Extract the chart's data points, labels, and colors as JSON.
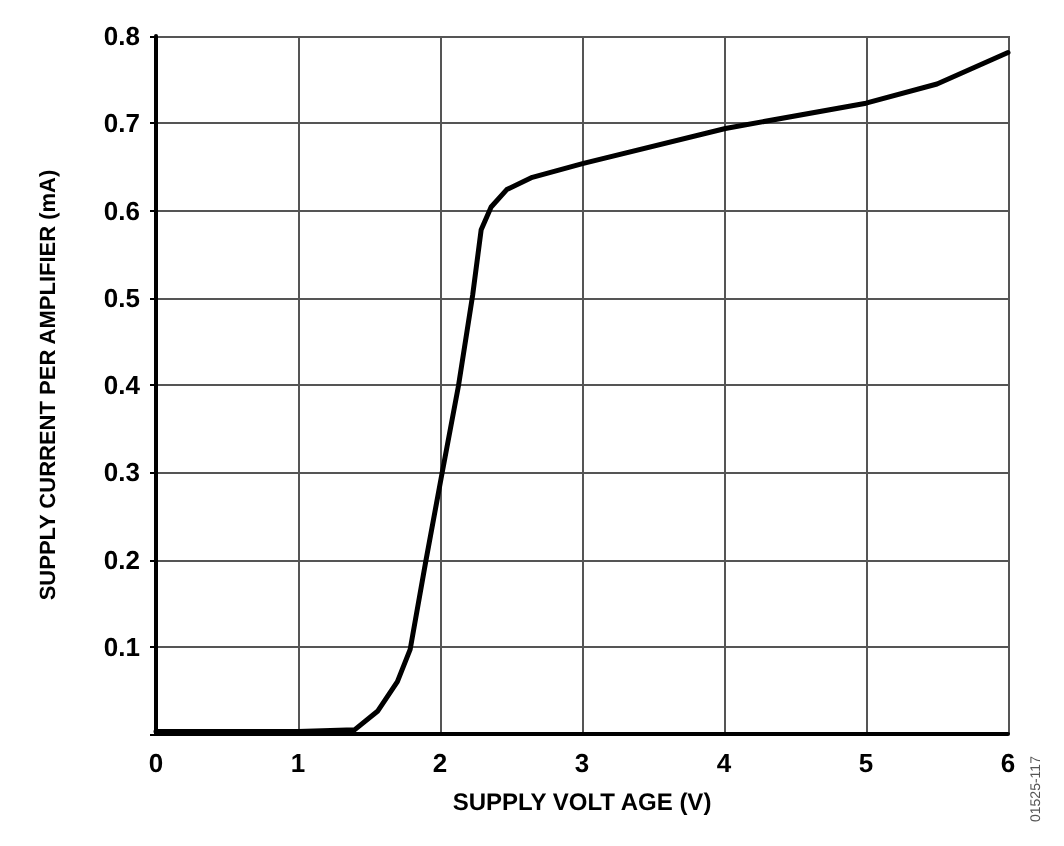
{
  "chart_data": {
    "type": "line",
    "xlabel": "SUPPLY VOLT AGE (V)",
    "ylabel": "SUPPLY CURRENT PER AMPLIFIER (mA)",
    "annotations": [
      "01525-117"
    ],
    "x": [
      0,
      1.0,
      1.4,
      1.56,
      1.7,
      1.79,
      1.9,
      2.01,
      2.13,
      2.23,
      2.29,
      2.36,
      2.47,
      2.65,
      3.01,
      4.01,
      5.0,
      5.5,
      6.0
    ],
    "series": [
      {
        "color": "#000000",
        "values": [
          0.003,
          0.003,
          0.005,
          0.026,
          0.06,
          0.097,
          0.198,
          0.295,
          0.399,
          0.503,
          0.578,
          0.604,
          0.624,
          0.638,
          0.654,
          0.694,
          0.723,
          0.745,
          0.781
        ]
      }
    ],
    "xlim": [
      0,
      6
    ],
    "xticks": [
      0,
      1,
      2,
      3,
      4,
      5,
      6
    ],
    "ylim": [
      0,
      0.8
    ],
    "yticks": [
      {
        "value": 0,
        "label": null
      },
      0.1,
      0.2,
      0.3,
      0.4,
      0.5,
      0.6,
      0.7,
      0.8
    ],
    "grid": true,
    "marker": "none",
    "line_style": "solid"
  }
}
